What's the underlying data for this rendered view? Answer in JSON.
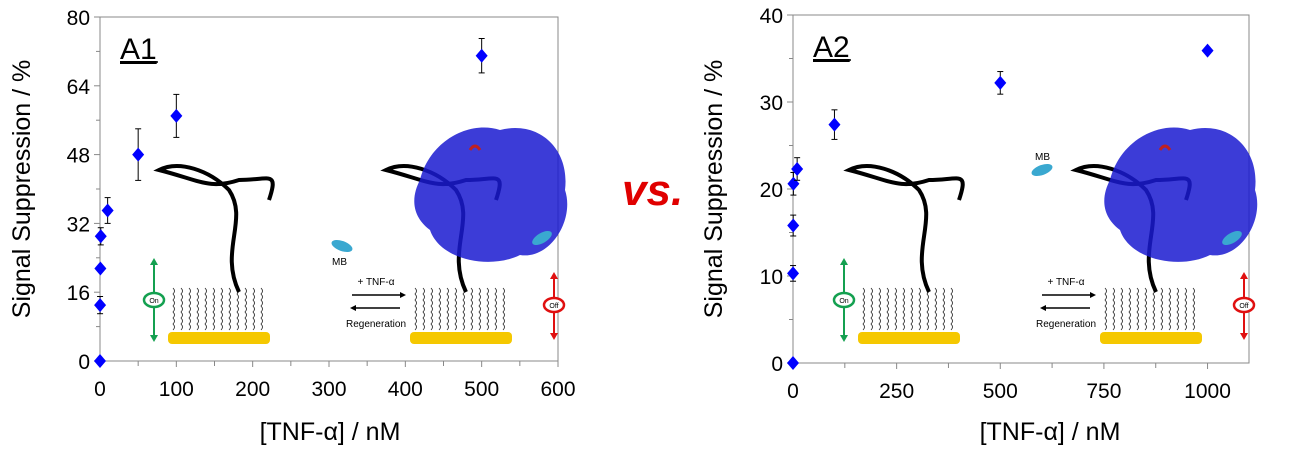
{
  "vs_label": "vs.",
  "scheme": {
    "mb": "MB",
    "forward": "+ TNF-α",
    "reverse": "Regeneration",
    "on": "On",
    "off": "Off"
  },
  "colors": {
    "marker": "#0000ff",
    "on": "#14a050",
    "off": "#e01010",
    "gold": "#f5c800",
    "protein": "#1a1ad0",
    "mb": "#3aa8d0",
    "vs": "#e00000"
  },
  "chart_data": [
    {
      "type": "scatter",
      "title": "A1",
      "xlabel": "[TNF-α] / nM",
      "ylabel": "Signal Suppression / %",
      "xlim": [
        0,
        600
      ],
      "ylim": [
        0,
        80
      ],
      "xticks": [
        0,
        100,
        200,
        300,
        400,
        500,
        600
      ],
      "yticks": [
        0,
        16,
        32,
        48,
        64,
        80
      ],
      "grid": false,
      "points": [
        {
          "x": 0,
          "y": 0,
          "err": 0
        },
        {
          "x": 0.1,
          "y": 13,
          "err": 2
        },
        {
          "x": 0.5,
          "y": 21.5,
          "err": 0
        },
        {
          "x": 1,
          "y": 29,
          "err": 2
        },
        {
          "x": 10,
          "y": 35,
          "err": 3
        },
        {
          "x": 50,
          "y": 48,
          "err": 6
        },
        {
          "x": 100,
          "y": 57,
          "err": 5
        },
        {
          "x": 500,
          "y": 71,
          "err": 4
        }
      ]
    },
    {
      "type": "scatter",
      "title": "A2",
      "xlabel": "[TNF-α] / nM",
      "ylabel": "Signal Suppression / %",
      "xlim": [
        0,
        1100
      ],
      "ylim": [
        0,
        40
      ],
      "xticks": [
        0,
        250,
        500,
        750,
        1000
      ],
      "yticks": [
        0,
        10,
        20,
        30,
        40
      ],
      "grid": false,
      "points": [
        {
          "x": 0,
          "y": 0,
          "err": 0
        },
        {
          "x": 0.1,
          "y": 10.3,
          "err": 0.9
        },
        {
          "x": 0.5,
          "y": 15.8,
          "err": 1.2
        },
        {
          "x": 1,
          "y": 20.6,
          "err": 1.3
        },
        {
          "x": 10,
          "y": 22.3,
          "err": 1.3
        },
        {
          "x": 100,
          "y": 27.4,
          "err": 1.7
        },
        {
          "x": 500,
          "y": 32.2,
          "err": 1.3
        },
        {
          "x": 1000,
          "y": 35.9,
          "err": 0.3
        }
      ]
    }
  ]
}
